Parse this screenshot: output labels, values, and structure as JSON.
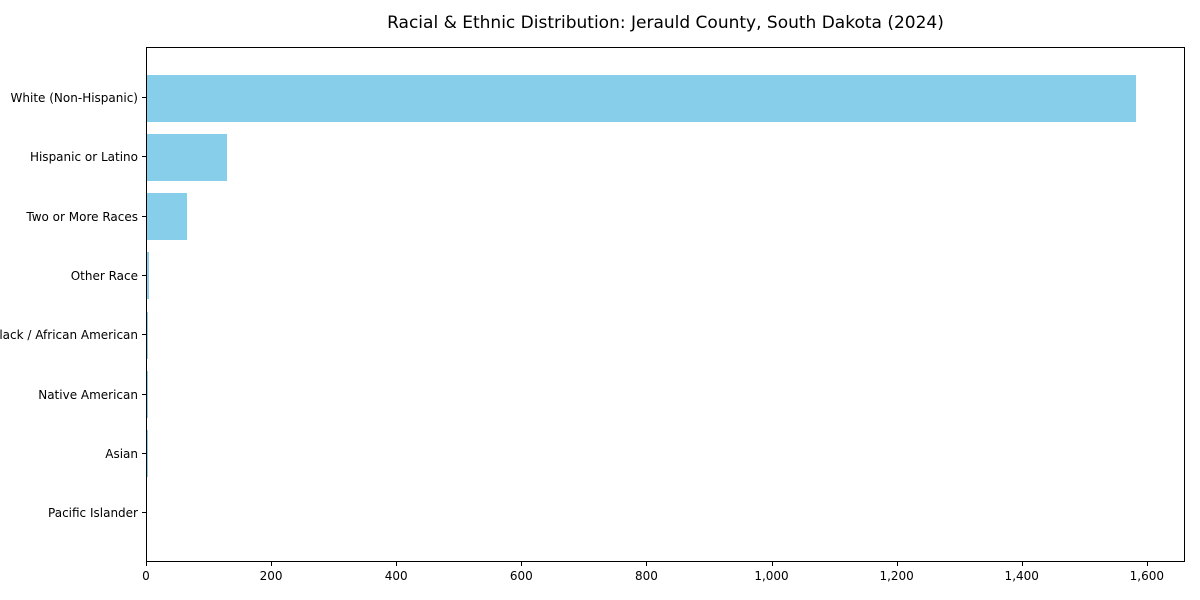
{
  "title": "Racial & Ethnic Distribution: Jerauld County, South Dakota (2024)",
  "colors": {
    "bar": "#87CEEB",
    "background": "#FFFFFF",
    "axis": "#000000",
    "text": "#000000"
  },
  "chart_data": {
    "type": "bar",
    "orientation": "horizontal",
    "title": "Racial & Ethnic Distribution: Jerauld County, South Dakota (2024)",
    "categories": [
      "White (Non-Hispanic)",
      "Hispanic or Latino",
      "Two or More Races",
      "Other Race",
      "Black / African American",
      "Native American",
      "Asian",
      "Pacific Islander"
    ],
    "values": [
      1584,
      128,
      64,
      3,
      1,
      1,
      1,
      0
    ],
    "xlabel": "",
    "ylabel": "",
    "xlim": [
      0,
      1661
    ],
    "x_ticks": [
      0,
      200,
      400,
      600,
      800,
      1000,
      1200,
      1400,
      1600
    ],
    "x_tick_labels": [
      "0",
      "200",
      "400",
      "600",
      "800",
      "1,000",
      "1,200",
      "1,400",
      "1,600"
    ],
    "grid": false,
    "legend": false,
    "bar_color": "#87CEEB"
  }
}
